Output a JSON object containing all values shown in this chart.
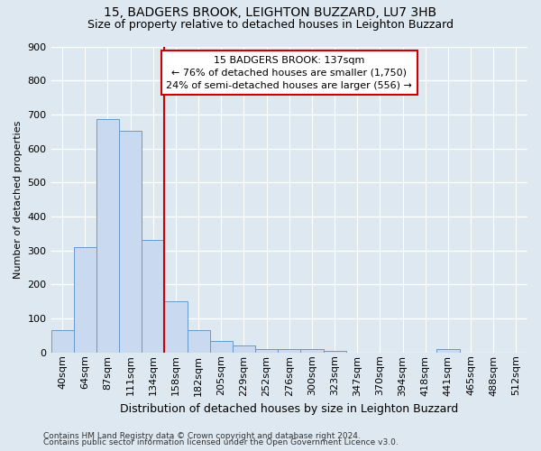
{
  "title": "15, BADGERS BROOK, LEIGHTON BUZZARD, LU7 3HB",
  "subtitle": "Size of property relative to detached houses in Leighton Buzzard",
  "xlabel": "Distribution of detached houses by size in Leighton Buzzard",
  "ylabel": "Number of detached properties",
  "footnote1": "Contains HM Land Registry data © Crown copyright and database right 2024.",
  "footnote2": "Contains public sector information licensed under the Open Government Licence v3.0.",
  "bar_labels": [
    "40sqm",
    "64sqm",
    "87sqm",
    "111sqm",
    "134sqm",
    "158sqm",
    "182sqm",
    "205sqm",
    "229sqm",
    "252sqm",
    "276sqm",
    "300sqm",
    "323sqm",
    "347sqm",
    "370sqm",
    "394sqm",
    "418sqm",
    "441sqm",
    "465sqm",
    "488sqm",
    "512sqm"
  ],
  "bar_values": [
    65,
    310,
    687,
    652,
    330,
    150,
    65,
    33,
    20,
    10,
    10,
    10,
    5,
    0,
    0,
    0,
    0,
    10,
    0,
    0,
    0
  ],
  "bar_color": "#c9d9f0",
  "bar_edge_color": "#6699cc",
  "vline_x": 4.5,
  "vline_color": "#cc0000",
  "annotation_line1": "15 BADGERS BROOK: 137sqm",
  "annotation_line2": "← 76% of detached houses are smaller (1,750)",
  "annotation_line3": "24% of semi-detached houses are larger (556) →",
  "annotation_box_color": "#ffffff",
  "annotation_box_edge": "#cc0000",
  "ylim": [
    0,
    900
  ],
  "yticks": [
    0,
    100,
    200,
    300,
    400,
    500,
    600,
    700,
    800,
    900
  ],
  "bg_color": "#dde8f0",
  "plot_bg_color": "#dde8f0",
  "grid_color": "#ffffff",
  "title_fontsize": 10,
  "subtitle_fontsize": 9,
  "xlabel_fontsize": 9,
  "ylabel_fontsize": 8,
  "tick_fontsize": 8,
  "annotation_fontsize": 8,
  "footnote_fontsize": 6.5
}
